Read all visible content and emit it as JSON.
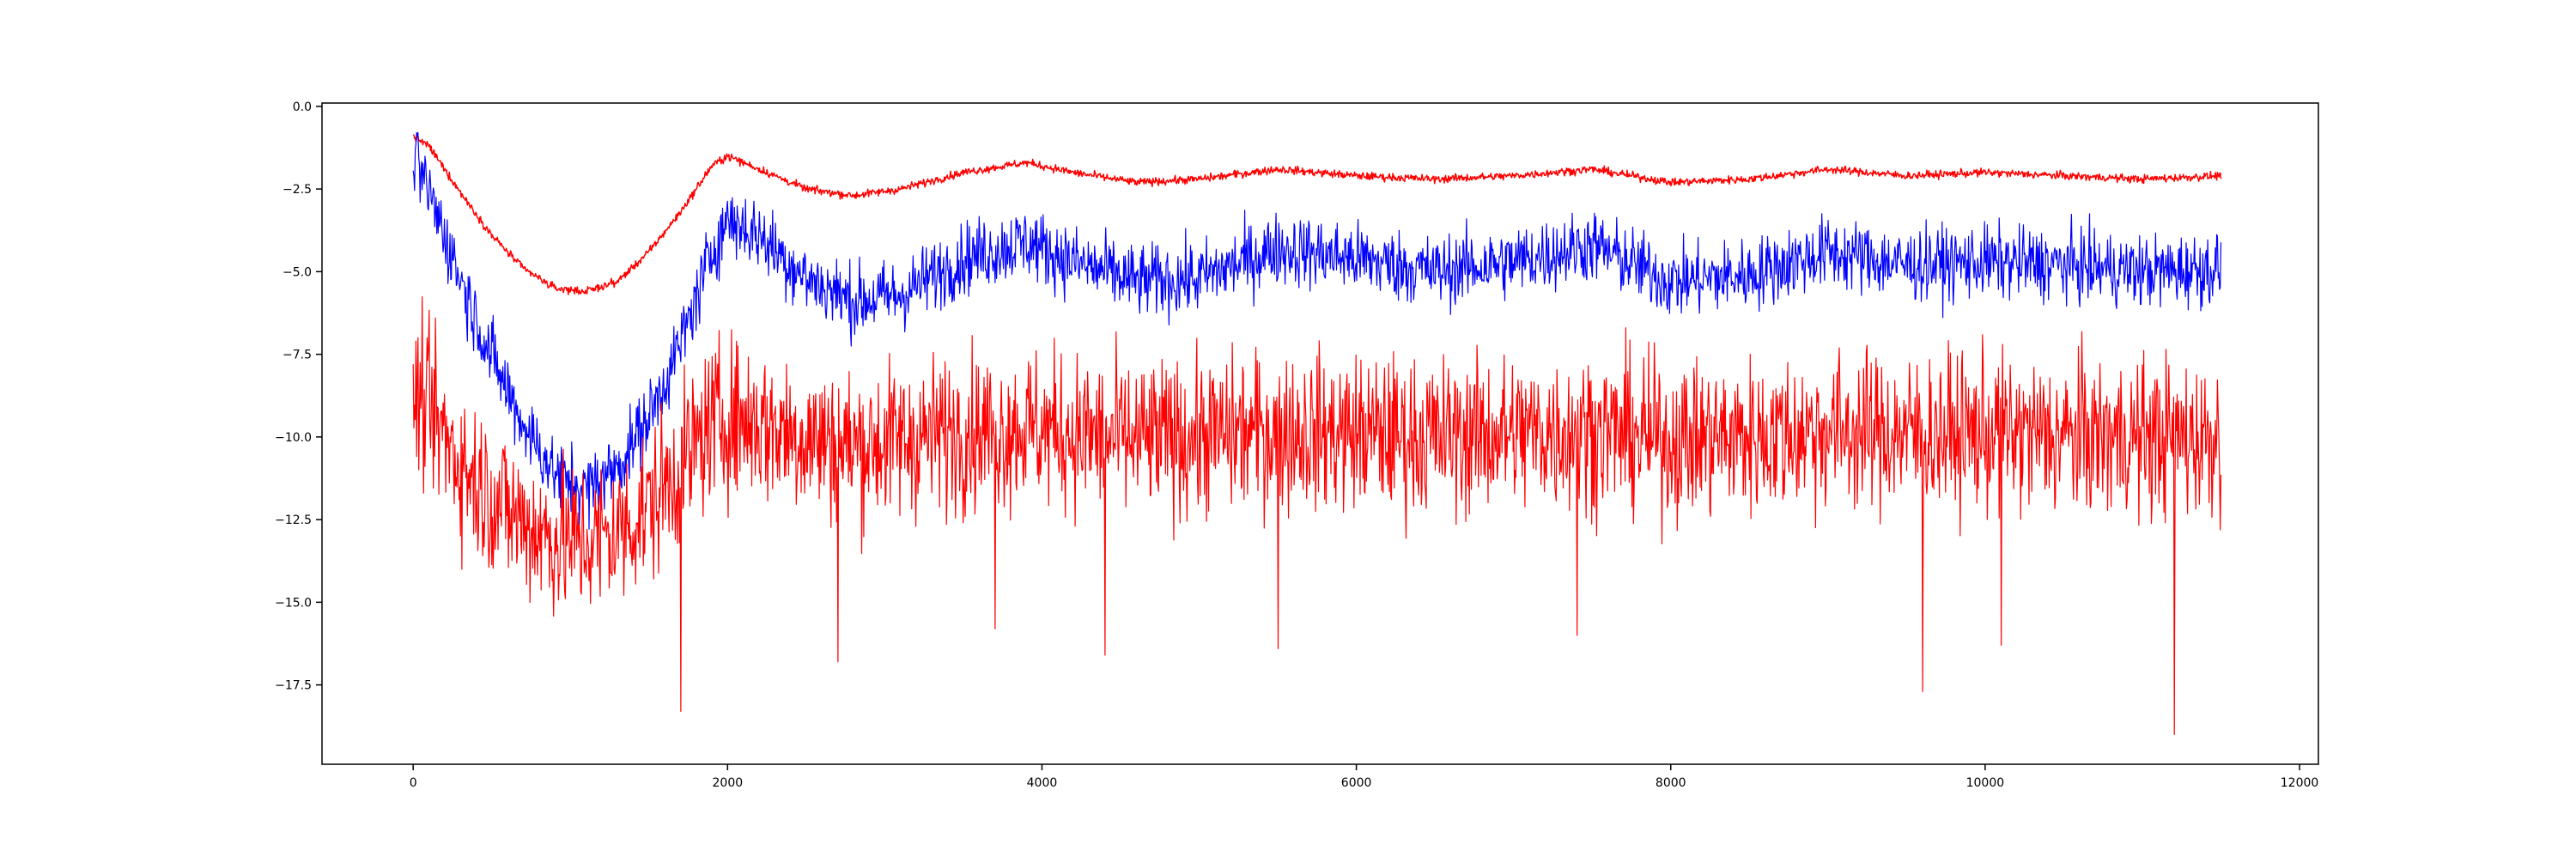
{
  "chart_data": {
    "type": "line",
    "title": "",
    "xlabel": "",
    "ylabel": "",
    "xlim": [
      -580,
      12120
    ],
    "ylim": [
      -19.9,
      0.1
    ],
    "x_ticks": [
      0,
      2000,
      4000,
      6000,
      8000,
      10000,
      12000
    ],
    "x_tick_labels": [
      "0",
      "2000",
      "4000",
      "6000",
      "8000",
      "10000",
      "12000"
    ],
    "y_ticks": [
      0.0,
      -2.5,
      -5.0,
      -7.5,
      -10.0,
      -12.5,
      -15.0,
      -17.5
    ],
    "y_tick_labels": [
      "0.0",
      "−2.5",
      "−5.0",
      "−7.5",
      "−10.0",
      "−12.5",
      "−15.0",
      "−17.5"
    ],
    "grid": false,
    "legend": "none",
    "x_range": [
      0,
      11500
    ],
    "series": [
      {
        "color": "#ff0000",
        "line_width": 1.5,
        "noise": 0.06,
        "spikes": [],
        "centerline": [
          [
            0,
            -0.9
          ],
          [
            100,
            -1.2
          ],
          [
            300,
            -2.6
          ],
          [
            500,
            -3.9
          ],
          [
            700,
            -4.9
          ],
          [
            900,
            -5.5
          ],
          [
            1100,
            -5.6
          ],
          [
            1300,
            -5.3
          ],
          [
            1500,
            -4.4
          ],
          [
            1700,
            -3.2
          ],
          [
            1900,
            -1.8
          ],
          [
            2000,
            -1.5
          ],
          [
            2200,
            -1.9
          ],
          [
            2500,
            -2.5
          ],
          [
            2800,
            -2.7
          ],
          [
            3100,
            -2.5
          ],
          [
            3500,
            -2.0
          ],
          [
            3900,
            -1.7
          ],
          [
            4200,
            -2.0
          ],
          [
            4600,
            -2.3
          ],
          [
            5000,
            -2.2
          ],
          [
            5500,
            -1.9
          ],
          [
            6000,
            -2.1
          ],
          [
            6500,
            -2.2
          ],
          [
            7000,
            -2.1
          ],
          [
            7500,
            -1.9
          ],
          [
            8000,
            -2.3
          ],
          [
            8500,
            -2.2
          ],
          [
            9000,
            -1.9
          ],
          [
            9500,
            -2.1
          ],
          [
            10000,
            -2.0
          ],
          [
            10500,
            -2.1
          ],
          [
            11000,
            -2.2
          ],
          [
            11500,
            -2.1
          ]
        ]
      },
      {
        "color": "#0000ff",
        "line_width": 1.2,
        "noise": 0.55,
        "spikes": [],
        "centerline": [
          [
            0,
            -1.6
          ],
          [
            100,
            -2.6
          ],
          [
            300,
            -5.2
          ],
          [
            500,
            -7.6
          ],
          [
            700,
            -9.6
          ],
          [
            900,
            -11.1
          ],
          [
            1100,
            -11.6
          ],
          [
            1300,
            -10.9
          ],
          [
            1500,
            -9.4
          ],
          [
            1700,
            -7.2
          ],
          [
            1900,
            -4.4
          ],
          [
            2000,
            -3.4
          ],
          [
            2200,
            -3.9
          ],
          [
            2500,
            -5.2
          ],
          [
            2800,
            -5.9
          ],
          [
            3100,
            -5.7
          ],
          [
            3500,
            -4.6
          ],
          [
            3900,
            -4.1
          ],
          [
            4200,
            -4.7
          ],
          [
            4600,
            -5.3
          ],
          [
            5000,
            -5.2
          ],
          [
            5500,
            -4.3
          ],
          [
            6000,
            -4.6
          ],
          [
            6500,
            -5.0
          ],
          [
            7000,
            -4.7
          ],
          [
            7500,
            -4.2
          ],
          [
            8000,
            -5.3
          ],
          [
            8500,
            -5.1
          ],
          [
            9000,
            -4.4
          ],
          [
            9500,
            -4.8
          ],
          [
            10000,
            -4.7
          ],
          [
            10500,
            -4.8
          ],
          [
            11000,
            -5.0
          ],
          [
            11500,
            -4.9
          ]
        ]
      },
      {
        "color": "#ff0000",
        "line_width": 1.2,
        "noise": 1.2,
        "spikes": [
          [
            1700,
            -18.3
          ],
          [
            2700,
            -16.8
          ],
          [
            3700,
            -15.8
          ],
          [
            4400,
            -16.6
          ],
          [
            5500,
            -16.4
          ],
          [
            7400,
            -16.0
          ],
          [
            9600,
            -17.7
          ],
          [
            10100,
            -16.3
          ],
          [
            11200,
            -19.0
          ]
        ],
        "centerline": [
          [
            0,
            -8.6
          ],
          [
            100,
            -9.2
          ],
          [
            300,
            -10.8
          ],
          [
            500,
            -11.8
          ],
          [
            700,
            -12.6
          ],
          [
            900,
            -13.1
          ],
          [
            1100,
            -13.2
          ],
          [
            1300,
            -12.9
          ],
          [
            1500,
            -12.1
          ],
          [
            1700,
            -10.9
          ],
          [
            1900,
            -9.6
          ],
          [
            2000,
            -9.4
          ],
          [
            2200,
            -9.6
          ],
          [
            2500,
            -10.0
          ],
          [
            2800,
            -10.3
          ],
          [
            3100,
            -10.1
          ],
          [
            3500,
            -9.8
          ],
          [
            3900,
            -9.7
          ],
          [
            4200,
            -9.9
          ],
          [
            4600,
            -10.1
          ],
          [
            5000,
            -10.0
          ],
          [
            5500,
            -9.8
          ],
          [
            6000,
            -9.9
          ],
          [
            6500,
            -10.0
          ],
          [
            7000,
            -9.9
          ],
          [
            7500,
            -9.8
          ],
          [
            8000,
            -10.1
          ],
          [
            8500,
            -10.0
          ],
          [
            9000,
            -9.8
          ],
          [
            9500,
            -9.9
          ],
          [
            10000,
            -9.9
          ],
          [
            10500,
            -10.0
          ],
          [
            11000,
            -10.0
          ],
          [
            11500,
            -10.0
          ]
        ]
      }
    ]
  }
}
